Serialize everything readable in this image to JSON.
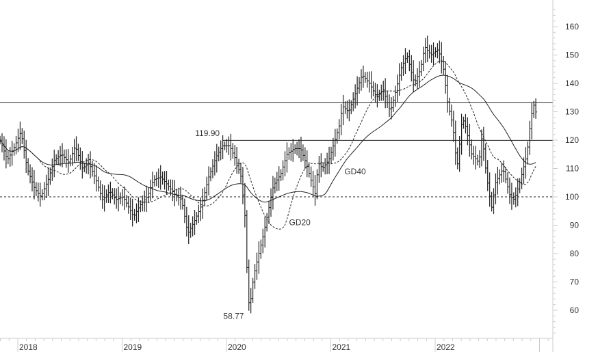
{
  "chart_data": {
    "type": "line",
    "subtype": "ohlc-bars",
    "title": "",
    "xlabel": "",
    "ylabel": "",
    "ylim": [
      50,
      167
    ],
    "xlim": [
      2017.83,
      2023.1
    ],
    "x_ticks": [
      "2018",
      "2019",
      "2020",
      "2021",
      "2022"
    ],
    "y_ticks": [
      60,
      70,
      80,
      90,
      100,
      110,
      120,
      130,
      140,
      150,
      160
    ],
    "grid": false,
    "series_price": [
      [
        2017.83,
        120
      ],
      [
        2017.9,
        113
      ],
      [
        2017.96,
        117
      ],
      [
        2018.03,
        123
      ],
      [
        2018.09,
        110
      ],
      [
        2018.16,
        103
      ],
      [
        2018.22,
        100
      ],
      [
        2018.29,
        106
      ],
      [
        2018.35,
        113
      ],
      [
        2018.42,
        115
      ],
      [
        2018.49,
        112
      ],
      [
        2018.55,
        118
      ],
      [
        2018.62,
        110
      ],
      [
        2018.68,
        112
      ],
      [
        2018.75,
        106
      ],
      [
        2018.81,
        99
      ],
      [
        2018.88,
        102
      ],
      [
        2018.94,
        99
      ],
      [
        2019.01,
        100
      ],
      [
        2019.11,
        93
      ],
      [
        2019.17,
        97
      ],
      [
        2019.24,
        100
      ],
      [
        2019.3,
        106
      ],
      [
        2019.37,
        107
      ],
      [
        2019.44,
        104
      ],
      [
        2019.5,
        101
      ],
      [
        2019.57,
        99
      ],
      [
        2019.63,
        87
      ],
      [
        2019.7,
        92
      ],
      [
        2019.76,
        97
      ],
      [
        2019.83,
        107
      ],
      [
        2019.9,
        114
      ],
      [
        2019.96,
        118
      ],
      [
        2020.03,
        118
      ],
      [
        2020.09,
        113
      ],
      [
        2020.14,
        107
      ],
      [
        2020.18,
        92
      ],
      [
        2020.2,
        70
      ],
      [
        2020.22,
        60
      ],
      [
        2020.26,
        72
      ],
      [
        2020.31,
        80
      ],
      [
        2020.35,
        86
      ],
      [
        2020.4,
        95
      ],
      [
        2020.45,
        104
      ],
      [
        2020.52,
        108
      ],
      [
        2020.58,
        115
      ],
      [
        2020.65,
        117
      ],
      [
        2020.71,
        117
      ],
      [
        2020.77,
        111
      ],
      [
        2020.81,
        106
      ],
      [
        2020.85,
        101
      ],
      [
        2020.88,
        112
      ],
      [
        2020.92,
        110
      ],
      [
        2020.98,
        113
      ],
      [
        2021.04,
        120
      ],
      [
        2021.08,
        125
      ],
      [
        2021.11,
        132
      ],
      [
        2021.17,
        130
      ],
      [
        2021.24,
        137
      ],
      [
        2021.3,
        143
      ],
      [
        2021.37,
        140
      ],
      [
        2021.44,
        135
      ],
      [
        2021.5,
        138
      ],
      [
        2021.57,
        130
      ],
      [
        2021.62,
        137
      ],
      [
        2021.67,
        145
      ],
      [
        2021.73,
        150
      ],
      [
        2021.8,
        140
      ],
      [
        2021.86,
        145
      ],
      [
        2021.9,
        153
      ],
      [
        2021.96,
        150
      ],
      [
        2022.03,
        152
      ],
      [
        2022.08,
        145
      ],
      [
        2022.12,
        133
      ],
      [
        2022.17,
        125
      ],
      [
        2022.21,
        110
      ],
      [
        2022.26,
        128
      ],
      [
        2022.29,
        125
      ],
      [
        2022.35,
        115
      ],
      [
        2022.42,
        112
      ],
      [
        2022.45,
        122
      ],
      [
        2022.49,
        108
      ],
      [
        2022.54,
        96
      ],
      [
        2022.58,
        105
      ],
      [
        2022.65,
        110
      ],
      [
        2022.72,
        100
      ],
      [
        2022.76,
        99
      ],
      [
        2022.81,
        105
      ],
      [
        2022.88,
        115
      ],
      [
        2022.91,
        125
      ],
      [
        2022.94,
        133
      ],
      [
        2022.98,
        128
      ]
    ],
    "moving_averages": [
      {
        "name": "GD20",
        "period_weeks": 20,
        "style": "dashed"
      },
      {
        "name": "GD40",
        "period_weeks": 40,
        "style": "solid"
      }
    ],
    "horizontal_lines": [
      {
        "value": 133.3,
        "style": "solid",
        "from": 2017.83
      },
      {
        "value": 119.9,
        "style": "solid",
        "from": 2019.96
      },
      {
        "value": 100,
        "style": "dashed",
        "from": 2017.83
      }
    ],
    "annotations": [
      {
        "text": "119.90",
        "x": 2019.7,
        "y": 121.5
      },
      {
        "text": "58.77",
        "x": 2019.97,
        "y": 57
      },
      {
        "text": "GD40",
        "x": 2021.13,
        "y": 108
      },
      {
        "text": "GD20",
        "x": 2020.6,
        "y": 90
      }
    ],
    "low_value": 58.77,
    "colors": {
      "bars": "#222222",
      "lines": "#222222",
      "axis": "#cccccc",
      "labels": "#333333"
    }
  }
}
